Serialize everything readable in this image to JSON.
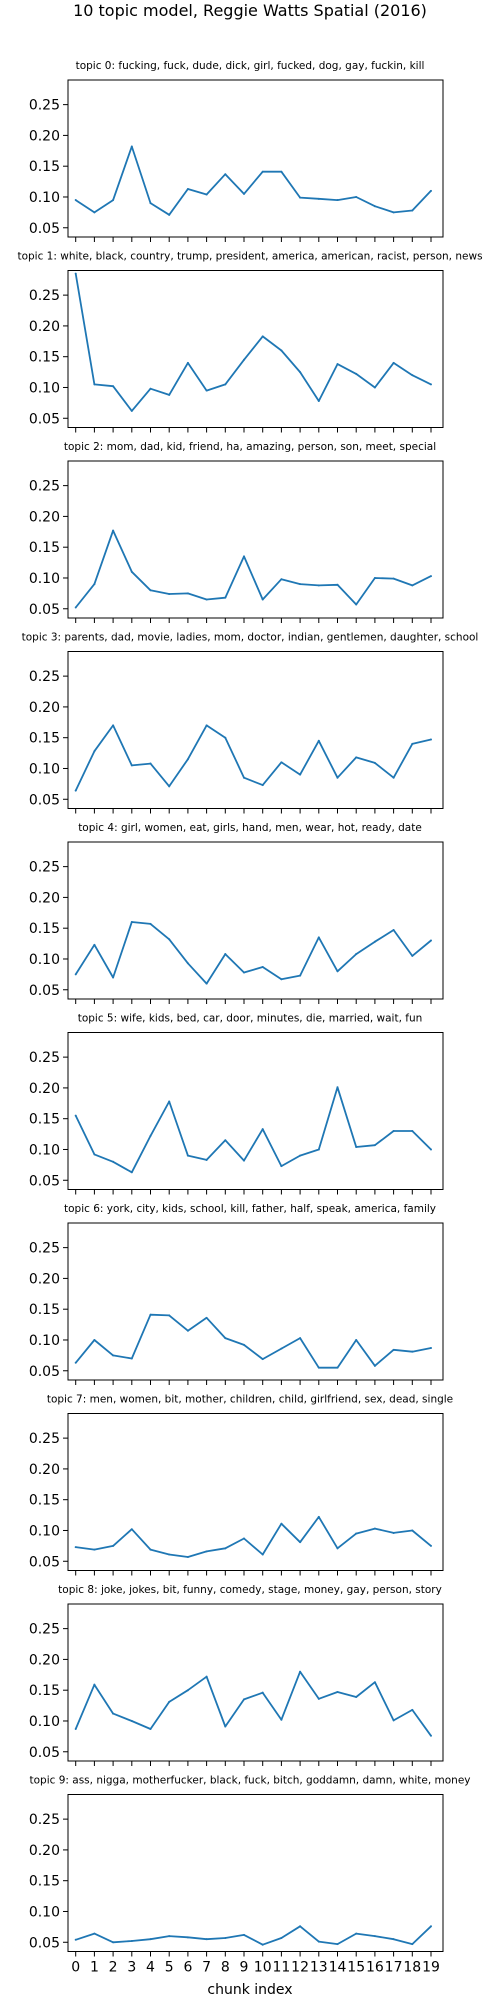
{
  "figure": {
    "title": "10 topic model, Reggie Watts Spatial (2016)",
    "xlabel": "chunk index"
  },
  "chart_data": [
    {
      "type": "line",
      "title": "topic 0: fucking, fuck, dude, dick, girl, fucked, dog, gay, fuckin, kill",
      "x": [
        0,
        1,
        2,
        3,
        4,
        5,
        6,
        7,
        8,
        9,
        10,
        11,
        12,
        13,
        14,
        15,
        16,
        17,
        18,
        19
      ],
      "y": [
        0.095,
        0.075,
        0.095,
        0.182,
        0.09,
        0.071,
        0.113,
        0.104,
        0.137,
        0.105,
        0.141,
        0.141,
        0.099,
        0.097,
        0.095,
        0.1,
        0.085,
        0.075,
        0.078,
        0.11
      ],
      "ylim": [
        0.035,
        0.29
      ],
      "yticks": [
        "0.05",
        "0.10",
        "0.15",
        "0.20",
        "0.25"
      ],
      "grid": false
    },
    {
      "type": "line",
      "title": "topic 1: white, black, country, trump, president, america, american, racist, person, news",
      "x": [
        0,
        1,
        2,
        3,
        4,
        5,
        6,
        7,
        8,
        9,
        10,
        11,
        12,
        13,
        14,
        15,
        16,
        17,
        18,
        19
      ],
      "y": [
        0.285,
        0.105,
        0.102,
        0.062,
        0.098,
        0.088,
        0.14,
        0.095,
        0.105,
        0.145,
        0.183,
        0.16,
        0.125,
        0.078,
        0.138,
        0.122,
        0.1,
        0.14,
        0.12,
        0.105
      ],
      "ylim": [
        0.035,
        0.29
      ],
      "yticks": [
        "0.05",
        "0.10",
        "0.15",
        "0.20",
        "0.25"
      ],
      "grid": false
    },
    {
      "type": "line",
      "title": "topic 2: mom, dad, kid, friend, ha, amazing, person, son, meet, special",
      "x": [
        0,
        1,
        2,
        3,
        4,
        5,
        6,
        7,
        8,
        9,
        10,
        11,
        12,
        13,
        14,
        15,
        16,
        17,
        18,
        19
      ],
      "y": [
        0.052,
        0.09,
        0.177,
        0.11,
        0.08,
        0.074,
        0.075,
        0.065,
        0.068,
        0.135,
        0.065,
        0.098,
        0.09,
        0.088,
        0.089,
        0.057,
        0.1,
        0.099,
        0.088,
        0.103
      ],
      "ylim": [
        0.035,
        0.29
      ],
      "yticks": [
        "0.05",
        "0.10",
        "0.15",
        "0.20",
        "0.25"
      ],
      "grid": false
    },
    {
      "type": "line",
      "title": "topic 3: parents, dad, movie, ladies, mom, doctor, indian, gentlemen, daughter, school",
      "x": [
        0,
        1,
        2,
        3,
        4,
        5,
        6,
        7,
        8,
        9,
        10,
        11,
        12,
        13,
        14,
        15,
        16,
        17,
        18,
        19
      ],
      "y": [
        0.064,
        0.128,
        0.17,
        0.105,
        0.108,
        0.071,
        0.115,
        0.17,
        0.15,
        0.085,
        0.073,
        0.11,
        0.09,
        0.145,
        0.085,
        0.118,
        0.109,
        0.085,
        0.14,
        0.147
      ],
      "ylim": [
        0.035,
        0.29
      ],
      "yticks": [
        "0.05",
        "0.10",
        "0.15",
        "0.20",
        "0.25"
      ],
      "grid": false
    },
    {
      "type": "line",
      "title": "topic 4: girl, women, eat, girls, hand, men, wear, hot, ready, date",
      "x": [
        0,
        1,
        2,
        3,
        4,
        5,
        6,
        7,
        8,
        9,
        10,
        11,
        12,
        13,
        14,
        15,
        16,
        17,
        18,
        19
      ],
      "y": [
        0.075,
        0.123,
        0.07,
        0.16,
        0.157,
        0.132,
        0.093,
        0.06,
        0.108,
        0.078,
        0.087,
        0.067,
        0.073,
        0.135,
        0.08,
        0.108,
        0.128,
        0.147,
        0.105,
        0.13
      ],
      "ylim": [
        0.035,
        0.29
      ],
      "yticks": [
        "0.05",
        "0.10",
        "0.15",
        "0.20",
        "0.25"
      ],
      "grid": false
    },
    {
      "type": "line",
      "title": "topic 5: wife, kids, bed, car, door, minutes, die, married, wait, fun",
      "x": [
        0,
        1,
        2,
        3,
        4,
        5,
        6,
        7,
        8,
        9,
        10,
        11,
        12,
        13,
        14,
        15,
        16,
        17,
        18,
        19
      ],
      "y": [
        0.155,
        0.092,
        0.08,
        0.063,
        0.122,
        0.178,
        0.09,
        0.083,
        0.115,
        0.082,
        0.133,
        0.073,
        0.09,
        0.1,
        0.201,
        0.104,
        0.107,
        0.13,
        0.13,
        0.1
      ],
      "ylim": [
        0.035,
        0.29
      ],
      "yticks": [
        "0.05",
        "0.10",
        "0.15",
        "0.20",
        "0.25"
      ],
      "grid": false
    },
    {
      "type": "line",
      "title": "topic 6: york, city, kids, school, kill, father, half, speak, america, family",
      "x": [
        0,
        1,
        2,
        3,
        4,
        5,
        6,
        7,
        8,
        9,
        10,
        11,
        12,
        13,
        14,
        15,
        16,
        17,
        18,
        19
      ],
      "y": [
        0.063,
        0.1,
        0.075,
        0.07,
        0.141,
        0.14,
        0.115,
        0.136,
        0.103,
        0.092,
        0.069,
        0.086,
        0.103,
        0.055,
        0.055,
        0.1,
        0.058,
        0.084,
        0.081,
        0.087
      ],
      "ylim": [
        0.035,
        0.29
      ],
      "yticks": [
        "0.05",
        "0.10",
        "0.15",
        "0.20",
        "0.25"
      ],
      "grid": false
    },
    {
      "type": "line",
      "title": "topic 7: men, women, bit, mother, children, child, girlfriend, sex, dead, single",
      "x": [
        0,
        1,
        2,
        3,
        4,
        5,
        6,
        7,
        8,
        9,
        10,
        11,
        12,
        13,
        14,
        15,
        16,
        17,
        18,
        19
      ],
      "y": [
        0.073,
        0.069,
        0.075,
        0.102,
        0.069,
        0.061,
        0.057,
        0.066,
        0.071,
        0.087,
        0.061,
        0.111,
        0.081,
        0.122,
        0.071,
        0.095,
        0.103,
        0.096,
        0.1,
        0.075
      ],
      "ylim": [
        0.035,
        0.29
      ],
      "yticks": [
        "0.05",
        "0.10",
        "0.15",
        "0.20",
        "0.25"
      ],
      "grid": false
    },
    {
      "type": "line",
      "title": "topic 8: joke, jokes, bit, funny, comedy, stage, money, gay, person, story",
      "x": [
        0,
        1,
        2,
        3,
        4,
        5,
        6,
        7,
        8,
        9,
        10,
        11,
        12,
        13,
        14,
        15,
        16,
        17,
        18,
        19
      ],
      "y": [
        0.087,
        0.159,
        0.112,
        0.1,
        0.087,
        0.131,
        0.15,
        0.172,
        0.091,
        0.135,
        0.146,
        0.102,
        0.18,
        0.136,
        0.147,
        0.139,
        0.163,
        0.101,
        0.118,
        0.076
      ],
      "ylim": [
        0.035,
        0.29
      ],
      "yticks": [
        "0.05",
        "0.10",
        "0.15",
        "0.20",
        "0.25"
      ],
      "grid": false
    },
    {
      "type": "line",
      "title": "topic 9: ass, nigga, motherfucker, black, fuck, bitch, goddamn, damn, white, money",
      "x": [
        0,
        1,
        2,
        3,
        4,
        5,
        6,
        7,
        8,
        9,
        10,
        11,
        12,
        13,
        14,
        15,
        16,
        17,
        18,
        19
      ],
      "y": [
        0.054,
        0.064,
        0.05,
        0.052,
        0.055,
        0.06,
        0.058,
        0.055,
        0.057,
        0.062,
        0.046,
        0.057,
        0.076,
        0.051,
        0.047,
        0.064,
        0.06,
        0.055,
        0.047,
        0.076
      ],
      "ylim": [
        0.035,
        0.29
      ],
      "yticks": [
        "0.05",
        "0.10",
        "0.15",
        "0.20",
        "0.25"
      ],
      "grid": false
    }
  ]
}
